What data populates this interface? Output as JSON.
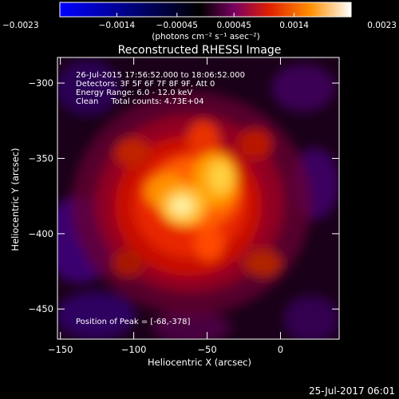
{
  "chart_data": {
    "type": "heatmap",
    "title": "Reconstructed RHESSI Image",
    "xlabel": "Heliocentric X (arcsec)",
    "ylabel": "Heliocentric Y (arcsec)",
    "xlim": [
      -152,
      40
    ],
    "ylim": [
      -470,
      -283
    ],
    "x_ticks": [
      -150,
      -100,
      -50,
      0
    ],
    "x_tick_labels": [
      "−150",
      "−100",
      "−50",
      "0"
    ],
    "y_ticks": [
      -300,
      -350,
      -400,
      -450
    ],
    "y_tick_labels": [
      "−300",
      "−350",
      "−400",
      "−450"
    ],
    "colorbar": {
      "min": -0.0023,
      "max": 0.0023,
      "tick_values": [
        -0.0023,
        -0.0014,
        -0.00045,
        0.00045,
        0.0014,
        0.0023
      ],
      "tick_labels": [
        "−0.0023",
        "−0.0014",
        "−0.00045",
        "0.00045",
        "0.0014",
        "0.0023"
      ],
      "unit_label": "(photons cm⁻² s⁻¹ asec⁻²)",
      "colors": [
        "#0000ff",
        "#000000",
        "#6a0080",
        "#c0004a",
        "#ff3000",
        "#ff9000",
        "#ffd040",
        "#ffffff"
      ]
    },
    "sources": [
      {
        "x": -68,
        "y": -378,
        "value": 0.0023
      },
      {
        "x": -48,
        "y": -355,
        "value": 0.0016
      },
      {
        "x": -90,
        "y": -368,
        "value": 0.0012
      },
      {
        "x": -50,
        "y": -410,
        "value": 0.0009
      },
      {
        "x": -60,
        "y": -330,
        "value": 0.0007
      }
    ],
    "annotations": [
      "26-Jul-2015 17:56:52.000 to 18:06:52.000",
      "Detectors: 3F 5F 6F 7F 8F 9F, Att 0",
      "Energy Range: 6.0 - 12.0 keV",
      "Clean     Total counts: 4.73E+04"
    ],
    "peak_text": "Position of Peak = [-68,-378]",
    "peak": {
      "x": -68,
      "y": -378
    }
  },
  "footer_timestamp": "25-Jul-2017 06:01"
}
